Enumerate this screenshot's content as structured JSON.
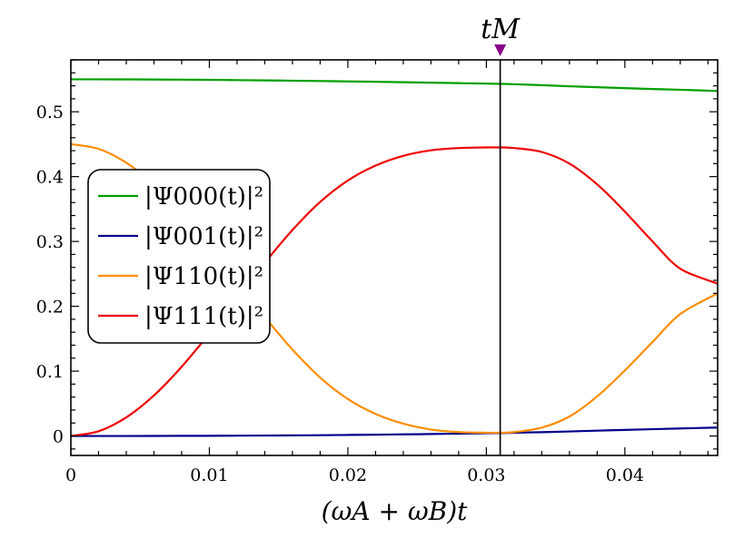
{
  "chart_data": {
    "type": "line",
    "xlabel": "(ωA + ωB)t",
    "xlim": [
      0,
      0.0467
    ],
    "ylim": [
      -0.03,
      0.58
    ],
    "x_ticks": [
      0,
      0.01,
      0.02,
      0.03,
      0.04
    ],
    "x_tick_labels": [
      "0",
      "0.01",
      "0.02",
      "0.03",
      "0.04"
    ],
    "y_ticks": [
      0,
      0.1,
      0.2,
      0.3,
      0.4,
      0.5
    ],
    "y_tick_labels": [
      "0",
      "0.1",
      "0.2",
      "0.3",
      "0.4",
      "0.5"
    ],
    "grid": false,
    "legend_position": "middle-left",
    "marker": {
      "label": "tM",
      "x": 0.031,
      "color": "#8b008b"
    },
    "x": [
      0,
      0.002,
      0.004,
      0.006,
      0.008,
      0.01,
      0.012,
      0.014,
      0.016,
      0.018,
      0.02,
      0.022,
      0.024,
      0.026,
      0.028,
      0.03,
      0.031,
      0.032,
      0.034,
      0.036,
      0.038,
      0.04,
      0.042,
      0.044,
      0.0467
    ],
    "series": [
      {
        "name": "|Ψ000(t)|²",
        "color": "#00a000",
        "values": [
          0.55,
          0.55,
          0.5499,
          0.5497,
          0.5495,
          0.5492,
          0.5488,
          0.5484,
          0.5479,
          0.5474,
          0.5468,
          0.5462,
          0.5455,
          0.5448,
          0.5441,
          0.5434,
          0.543,
          0.5425,
          0.541,
          0.5393,
          0.5378,
          0.5364,
          0.5351,
          0.5339,
          0.532
        ]
      },
      {
        "name": "|Ψ001(t)|²",
        "color": "#00008b",
        "values": [
          0.0,
          0.0,
          0.0,
          0.0001,
          0.0002,
          0.0003,
          0.0005,
          0.0007,
          0.0009,
          0.0012,
          0.0016,
          0.002,
          0.0025,
          0.003,
          0.0036,
          0.0042,
          0.0045,
          0.005,
          0.0059,
          0.007,
          0.0082,
          0.0094,
          0.0105,
          0.0116,
          0.013
        ]
      },
      {
        "name": "|Ψ110(t)|²",
        "color": "#ff8c00",
        "values": [
          0.45,
          0.4427,
          0.4214,
          0.3876,
          0.3435,
          0.2925,
          0.238,
          0.1837,
          0.1333,
          0.0901,
          0.057,
          0.034,
          0.019,
          0.01,
          0.006,
          0.005,
          0.005,
          0.006,
          0.013,
          0.03,
          0.061,
          0.101,
          0.145,
          0.188,
          0.22
        ]
      },
      {
        "name": "|Ψ111(t)|²",
        "color": "#ee0000",
        "values": [
          0.0,
          0.0073,
          0.0287,
          0.0626,
          0.1068,
          0.158,
          0.2127,
          0.2671,
          0.3176,
          0.3609,
          0.394,
          0.417,
          0.432,
          0.4405,
          0.444,
          0.445,
          0.445,
          0.444,
          0.438,
          0.42,
          0.388,
          0.346,
          0.3,
          0.258,
          0.235
        ]
      }
    ]
  }
}
